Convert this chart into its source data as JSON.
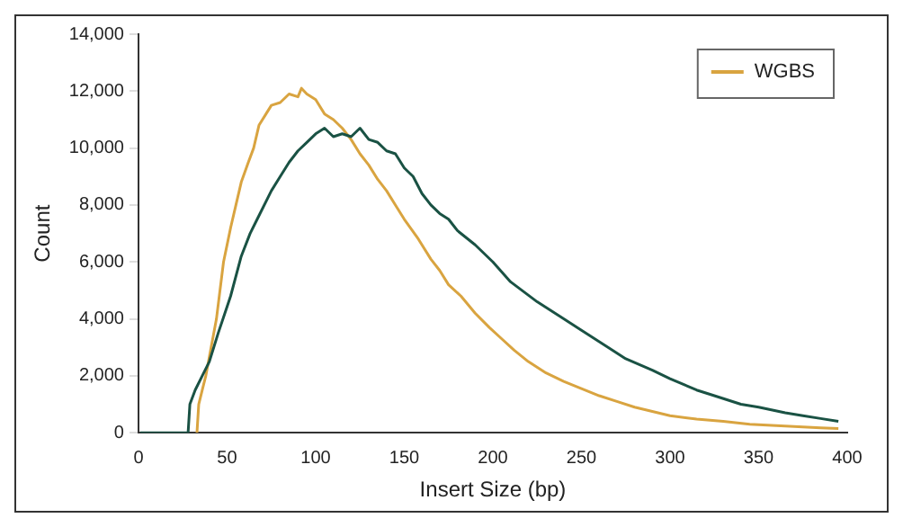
{
  "chart_data": {
    "type": "line",
    "xlabel": "Insert Size (bp)",
    "ylabel": "Count",
    "xlim": [
      0,
      400
    ],
    "xticks": [
      0,
      50,
      100,
      150,
      200,
      250,
      300,
      350,
      400
    ],
    "ylim": [
      0,
      14000
    ],
    "yticks": [
      {
        "value": 0,
        "label": "0"
      },
      {
        "value": 2000,
        "label": "2,000"
      },
      {
        "value": 4000,
        "label": "4,000"
      },
      {
        "value": 6000,
        "label": "6,000"
      },
      {
        "value": 8000,
        "label": "8,000"
      },
      {
        "value": 10000,
        "label": "10,000"
      },
      {
        "value": 12000,
        "label": "12,000"
      },
      {
        "value": 14000,
        "label": "14,000"
      }
    ],
    "grid": false,
    "legend": "top right",
    "marker": "none",
    "series": [
      {
        "color": "#1a5244",
        "x": [
          1,
          10,
          20,
          28,
          29,
          32,
          36,
          40,
          45,
          52,
          58,
          63,
          67,
          75,
          80,
          85,
          90,
          95,
          100,
          105,
          110,
          115,
          120,
          125,
          130,
          135,
          140,
          145,
          150,
          155,
          160,
          165,
          170,
          175,
          180,
          190,
          200,
          210,
          225,
          240,
          250,
          265,
          275,
          290,
          300,
          315,
          325,
          340,
          350,
          365,
          375,
          385,
          395
        ],
        "values": [
          0,
          0,
          0,
          0,
          1000,
          1500,
          2000,
          2500,
          3500,
          4800,
          6200,
          7000,
          7500,
          8500,
          9000,
          9500,
          9900,
          10200,
          10500,
          10700,
          10400,
          10500,
          10400,
          10700,
          10300,
          10200,
          9900,
          9800,
          9300,
          9000,
          8400,
          8000,
          7700,
          7500,
          7100,
          6600,
          6000,
          5300,
          4600,
          4000,
          3600,
          3000,
          2600,
          2200,
          1900,
          1500,
          1300,
          1000,
          900,
          700,
          600,
          500,
          400
        ]
      },
      {
        "name": "WGBS",
        "color": "#d9a440",
        "x": [
          33,
          34,
          36,
          38,
          41,
          44,
          48,
          52,
          55,
          58,
          62,
          65,
          68,
          72,
          75,
          80,
          85,
          90,
          92,
          95,
          100,
          105,
          110,
          115,
          120,
          125,
          130,
          135,
          140,
          145,
          150,
          158,
          165,
          170,
          175,
          182,
          190,
          198,
          205,
          212,
          220,
          230,
          240,
          250,
          260,
          270,
          280,
          290,
          300,
          315,
          330,
          345,
          360,
          375,
          385,
          395
        ],
        "values": [
          0,
          1000,
          1500,
          2000,
          3000,
          4000,
          6000,
          7200,
          8000,
          8800,
          9500,
          10000,
          10800,
          11200,
          11500,
          11600,
          11900,
          11800,
          12100,
          11900,
          11700,
          11200,
          11000,
          10700,
          10300,
          9800,
          9400,
          8900,
          8500,
          8000,
          7500,
          6800,
          6100,
          5700,
          5200,
          4800,
          4200,
          3700,
          3300,
          2900,
          2500,
          2100,
          1800,
          1550,
          1300,
          1100,
          900,
          750,
          600,
          480,
          400,
          300,
          250,
          200,
          170,
          150
        ]
      }
    ]
  }
}
